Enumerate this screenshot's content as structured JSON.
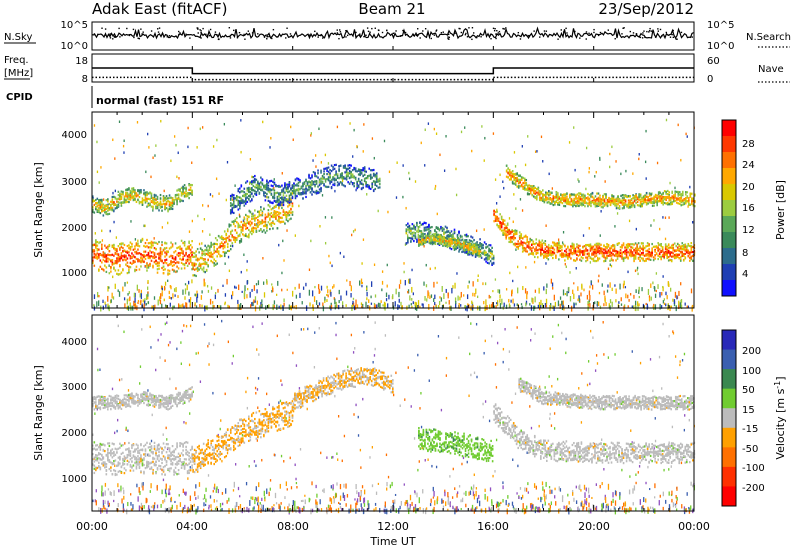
{
  "header": {
    "station": "Adak East (fitACF)",
    "beam": "Beam 21",
    "date": "23/Sep/2012"
  },
  "strip_nsky": {
    "left_label": "N.Sky",
    "right_label": "N.Search",
    "left_ticks": [
      "10^5",
      "10^0"
    ],
    "right_ticks": [
      "10^5",
      "10^0"
    ]
  },
  "strip_freq": {
    "left_label_1": "Freq.",
    "left_label_2": "[MHz]",
    "right_label": "Nave",
    "left_ticks": [
      "18",
      "8"
    ],
    "right_ticks": [
      "60",
      "0"
    ]
  },
  "cpid": {
    "label": "CPID",
    "value": "normal (fast) 151 RF"
  },
  "power_panel": {
    "ylabel": "Slant Range [km]",
    "yticks": [
      "4000",
      "3000",
      "2000",
      "1000"
    ],
    "colorbar_label": "Power [dB]",
    "colorbar_ticks": [
      "28",
      "24",
      "20",
      "16",
      "12",
      "8",
      "4"
    ],
    "colorbar_colors": [
      "#ff0000",
      "#ff3800",
      "#ff7000",
      "#ffa800",
      "#d9c800",
      "#9ccc40",
      "#5aa858",
      "#3a8a5a",
      "#2c6c8c",
      "#1f3fb3",
      "#1010ff"
    ]
  },
  "velocity_panel": {
    "ylabel": "Slant Range [km]",
    "yticks": [
      "4000",
      "3000",
      "2000",
      "1000"
    ],
    "colorbar_label": "Velocity [m s",
    "colorbar_unit_sup": "-1",
    "colorbar_unit_close": "]",
    "colorbar_ticks": [
      "200",
      "100",
      "50",
      "15",
      "-15",
      "-50",
      "-100",
      "-200"
    ],
    "colorbar_colors": [
      "#2828b8",
      "#3a5fb0",
      "#3a8850",
      "#70cc30",
      "#bcbcbc",
      "#ffa000",
      "#ff7000",
      "#ff3000",
      "#ff0000"
    ]
  },
  "xaxis": {
    "label": "Time UT",
    "ticks": [
      "00:00",
      "04:00",
      "08:00",
      "12:00",
      "16:00",
      "20:00",
      "00:00"
    ]
  },
  "chart_data": {
    "type": "heatmap",
    "title": "Adak East (fitACF)  Beam 21  23/Sep/2012",
    "xlabel": "Time UT",
    "x_range_hours": [
      0,
      24
    ],
    "ylabel": "Slant Range [km]",
    "ylim_km": [
      200,
      4500
    ],
    "power_scale_db": [
      0,
      30
    ],
    "velocity_scale_ms": [
      -250,
      250
    ],
    "freq_mhz": {
      "x": [
        0,
        4,
        4,
        16,
        16,
        24
      ],
      "y": [
        13,
        13,
        11,
        11,
        13,
        13
      ]
    },
    "nave": {
      "x": [
        0,
        4,
        4,
        16,
        16,
        24
      ],
      "y": [
        10,
        10,
        5,
        5,
        10,
        10
      ]
    },
    "power_series": [
      {
        "x": [
          0,
          0.5,
          1.0,
          1.5,
          2.0,
          2.5,
          3.0,
          3.5,
          4.0
        ],
        "range_km": [
          2500,
          2400,
          2600,
          2700,
          2650,
          2550,
          2500,
          2700,
          2850
        ],
        "width_km": 350,
        "power_db": 20
      },
      {
        "x": [
          0,
          0.5,
          1.0,
          1.5,
          2.0,
          2.5,
          3.0,
          3.5,
          4.0
        ],
        "range_km": [
          1400,
          1350,
          1300,
          1350,
          1400,
          1350,
          1300,
          1350,
          1400
        ],
        "width_km": 700,
        "power_db": 26
      },
      {
        "x": [
          4.0,
          4.5,
          5.0,
          5.5,
          6.0,
          6.5,
          7.0,
          7.5,
          8.0
        ],
        "range_km": [
          1200,
          1300,
          1500,
          1800,
          2000,
          2100,
          2200,
          2300,
          2500
        ],
        "width_km": 600,
        "power_db": 22
      },
      {
        "x": [
          5.5,
          6.0,
          6.5,
          7.0,
          7.5,
          8.0,
          8.5,
          9.0,
          9.5,
          10.0,
          10.5,
          11.0,
          11.5
        ],
        "range_km": [
          2500,
          2700,
          2900,
          2800,
          2700,
          2800,
          2900,
          3000,
          3100,
          3150,
          3100,
          3050,
          3000
        ],
        "width_km": 500,
        "power_db": 12
      },
      {
        "x": [
          12.5,
          13.0,
          13.5,
          14.0,
          14.5,
          15.0,
          15.5,
          16.0
        ],
        "range_km": [
          1850,
          1900,
          1850,
          1800,
          1700,
          1600,
          1500,
          1350
        ],
        "width_km": 450,
        "power_db": 14
      },
      {
        "x": [
          13.0,
          13.5,
          14.0,
          14.5,
          15.0,
          15.5
        ],
        "range_km": [
          1700,
          1750,
          1700,
          1650,
          1550,
          1450
        ],
        "width_km": 250,
        "power_db": 20
      },
      {
        "x": [
          16.0,
          16.5,
          17.0,
          17.5,
          18.0,
          19.0,
          20.0,
          21.0,
          22.0,
          23.0,
          24.0
        ],
        "range_km": [
          2300,
          1900,
          1700,
          1550,
          1500,
          1450,
          1450,
          1450,
          1450,
          1450,
          1450
        ],
        "width_km": 400,
        "power_db": 26
      },
      {
        "x": [
          16.5,
          17.0,
          17.5,
          18.0,
          19.0,
          20.0,
          21.0,
          22.0,
          23.0,
          24.0
        ],
        "range_km": [
          3200,
          3000,
          2800,
          2650,
          2600,
          2600,
          2550,
          2600,
          2650,
          2600
        ],
        "width_km": 300,
        "power_db": 22
      }
    ],
    "velocity_series": [
      {
        "x": [
          0,
          1,
          2,
          3,
          4
        ],
        "range_km": [
          2600,
          2600,
          2700,
          2600,
          2800
        ],
        "width_km": 300,
        "velocity_ms": 0
      },
      {
        "x": [
          0,
          1,
          2,
          3,
          4
        ],
        "range_km": [
          1400,
          1350,
          1400,
          1350,
          1400
        ],
        "width_km": 700,
        "velocity_ms": 0
      },
      {
        "x": [
          4,
          5,
          6,
          7,
          8
        ],
        "range_km": [
          1300,
          1600,
          2000,
          2200,
          2400
        ],
        "width_km": 600,
        "velocity_ms": -40
      },
      {
        "x": [
          8,
          9,
          10,
          11,
          12
        ],
        "range_km": [
          2600,
          2900,
          3100,
          3200,
          3000
        ],
        "width_km": 400,
        "velocity_ms": -30
      },
      {
        "x": [
          13,
          14,
          15,
          16
        ],
        "range_km": [
          1800,
          1750,
          1650,
          1500
        ],
        "width_km": 500,
        "velocity_ms": 60
      },
      {
        "x": [
          16,
          17,
          18,
          20,
          22,
          24
        ],
        "range_km": [
          2400,
          1800,
          1550,
          1500,
          1500,
          1500
        ],
        "width_km": 450,
        "velocity_ms": 0
      },
      {
        "x": [
          17,
          18,
          20,
          22,
          24
        ],
        "range_km": [
          3000,
          2700,
          2600,
          2600,
          2600
        ],
        "width_km": 300,
        "velocity_ms": 0
      }
    ]
  }
}
